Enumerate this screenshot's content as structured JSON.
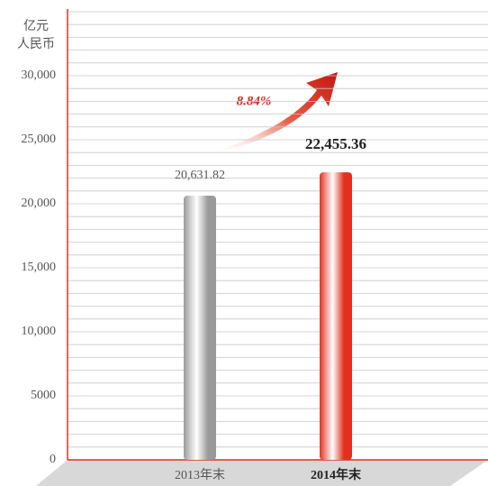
{
  "chart_data": {
    "type": "bar",
    "y_label": [
      "亿元",
      "人民币"
    ],
    "categories": [
      "2013年末",
      "2014年末"
    ],
    "values": [
      20631.82,
      22455.36
    ],
    "value_labels": [
      "20,631.82",
      "22,455.36"
    ],
    "colors": [
      "#9a9a9a",
      "#e2301f"
    ],
    "annotation": "8.84%",
    "ylim": [
      0,
      35000
    ],
    "yticks": [
      0,
      5000,
      {
        "value": 10000,
        "label": "10,000"
      },
      {
        "value": 15000,
        "label": "15,000"
      },
      {
        "value": 20000,
        "label": "20,000"
      },
      {
        "value": 25000,
        "label": "25,000"
      },
      {
        "value": 30000,
        "label": "30,000"
      }
    ],
    "minor_yticks": [
      1000,
      2000,
      3000,
      4000,
      6000,
      7000,
      8000,
      9000,
      11000,
      12000,
      13000,
      14000,
      16000,
      17000,
      18000,
      19000,
      21000,
      22000,
      23000,
      24000,
      26000,
      27000,
      28000,
      29000,
      31000,
      32000,
      33000,
      34000,
      35000
    ],
    "grid": true
  }
}
